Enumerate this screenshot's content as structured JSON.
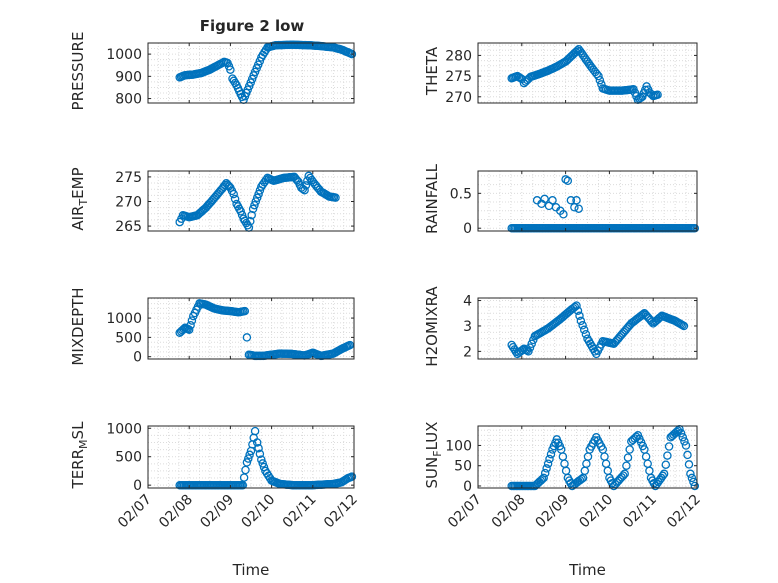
{
  "figure_title": "Figure 2 low",
  "colors": {
    "marker": "#0072BD",
    "axis": "#262626",
    "grid": "#dcdcdc"
  },
  "chart_data": [
    {
      "type": "scatter",
      "ylabel": "PRESSURE",
      "ylim": [
        780,
        1050
      ],
      "yticks": [
        800,
        900,
        1000
      ],
      "ytick_labels": [
        "800",
        "900",
        "1000"
      ],
      "xlim": [
        0,
        5
      ],
      "grid": "on",
      "curve": [
        [
          0.77,
          895
        ],
        [
          0.9,
          905
        ],
        [
          1.1,
          908
        ],
        [
          1.3,
          915
        ],
        [
          1.5,
          930
        ],
        [
          1.7,
          950
        ],
        [
          1.85,
          965
        ],
        [
          1.93,
          960
        ],
        [
          2.0,
          930
        ],
        [
          2.05,
          890
        ],
        [
          2.15,
          860
        ],
        [
          2.25,
          820
        ],
        [
          2.32,
          795
        ],
        [
          2.42,
          840
        ],
        [
          2.6,
          920
        ],
        [
          2.75,
          985
        ],
        [
          2.9,
          1030
        ],
        [
          3.1,
          1040
        ],
        [
          3.5,
          1042
        ],
        [
          3.9,
          1040
        ],
        [
          4.2,
          1036
        ],
        [
          4.5,
          1030
        ],
        [
          4.7,
          1020
        ],
        [
          4.85,
          1008
        ],
        [
          4.95,
          1000
        ]
      ]
    },
    {
      "type": "scatter",
      "ylabel": "THETA",
      "ylim": [
        268.5,
        283
      ],
      "yticks": [
        270,
        275,
        280
      ],
      "ytick_labels": [
        "270",
        "275",
        "280"
      ],
      "xlim": [
        0,
        5
      ],
      "grid": "on",
      "curve": [
        [
          0.77,
          274.5
        ],
        [
          0.9,
          275
        ],
        [
          1.0,
          274.3
        ],
        [
          1.05,
          273.3
        ],
        [
          1.2,
          274.8
        ],
        [
          1.4,
          275.5
        ],
        [
          1.6,
          276.3
        ],
        [
          1.8,
          277.3
        ],
        [
          2.0,
          278.5
        ],
        [
          2.2,
          280.5
        ],
        [
          2.3,
          281.5
        ],
        [
          2.4,
          280
        ],
        [
          2.6,
          277
        ],
        [
          2.75,
          275
        ],
        [
          2.85,
          272
        ],
        [
          3.0,
          271.5
        ],
        [
          3.3,
          271.5
        ],
        [
          3.55,
          271.8
        ],
        [
          3.65,
          269.3
        ],
        [
          3.75,
          270
        ],
        [
          3.85,
          272.5
        ],
        [
          3.92,
          271
        ],
        [
          4.0,
          270.2
        ],
        [
          4.1,
          270.5
        ]
      ]
    },
    {
      "type": "scatter",
      "ylabel": "AIR_TEMP",
      "ylim": [
        264,
        276.2
      ],
      "yticks": [
        265,
        270,
        275
      ],
      "ytick_labels": [
        "265",
        "270",
        "275"
      ],
      "xlim": [
        0,
        5
      ],
      "grid": "on",
      "curve": [
        [
          0.77,
          265.8
        ],
        [
          0.85,
          267.2
        ],
        [
          1.0,
          266.8
        ],
        [
          1.2,
          267.2
        ],
        [
          1.4,
          268.7
        ],
        [
          1.6,
          270.6
        ],
        [
          1.8,
          272.6
        ],
        [
          1.9,
          273.7
        ],
        [
          2.0,
          272.8
        ],
        [
          2.08,
          271.5
        ],
        [
          2.15,
          269.5
        ],
        [
          2.25,
          268
        ],
        [
          2.32,
          266.5
        ],
        [
          2.45,
          264.7
        ],
        [
          2.55,
          268.5
        ],
        [
          2.75,
          273
        ],
        [
          2.9,
          274.8
        ],
        [
          3.05,
          274.2
        ],
        [
          3.3,
          274.8
        ],
        [
          3.55,
          275
        ],
        [
          3.65,
          274
        ],
        [
          3.72,
          272.8
        ],
        [
          3.8,
          272.3
        ],
        [
          3.9,
          275.2
        ],
        [
          4.05,
          273.5
        ],
        [
          4.2,
          272
        ],
        [
          4.4,
          271
        ],
        [
          4.55,
          270.8
        ]
      ]
    },
    {
      "type": "scatter",
      "ylabel": "RAINFALL",
      "ylim": [
        -0.04,
        0.82
      ],
      "yticks": [
        0,
        0.5
      ],
      "ytick_labels": [
        "0",
        "0.5"
      ],
      "xlim": [
        0,
        5
      ],
      "grid": "on",
      "curve": [
        [
          0.77,
          0
        ],
        [
          4.95,
          0
        ]
      ],
      "points": [
        [
          1.35,
          0.4
        ],
        [
          1.45,
          0.35
        ],
        [
          1.52,
          0.42
        ],
        [
          1.62,
          0.32
        ],
        [
          1.7,
          0.4
        ],
        [
          1.78,
          0.3
        ],
        [
          1.88,
          0.25
        ],
        [
          1.95,
          0.2
        ],
        [
          2.0,
          0.7
        ],
        [
          2.05,
          0.68
        ],
        [
          2.12,
          0.4
        ],
        [
          2.2,
          0.3
        ],
        [
          2.25,
          0.4
        ],
        [
          2.3,
          0.28
        ]
      ]
    },
    {
      "type": "scatter",
      "ylabel": "MIXDEPTH",
      "ylim": [
        -60,
        1520
      ],
      "yticks": [
        0,
        500,
        1000
      ],
      "ytick_labels": [
        "0",
        "500",
        "1000"
      ],
      "xlim": [
        0,
        5
      ],
      "grid": "on",
      "curve": [
        [
          0.77,
          620
        ],
        [
          0.9,
          750
        ],
        [
          1.0,
          700
        ],
        [
          1.1,
          1050
        ],
        [
          1.25,
          1380
        ],
        [
          1.4,
          1350
        ],
        [
          1.6,
          1250
        ],
        [
          1.8,
          1200
        ],
        [
          2.0,
          1180
        ],
        [
          2.2,
          1150
        ],
        [
          2.35,
          1180
        ],
        [
          2.4,
          500
        ],
        [
          2.45,
          50
        ],
        [
          2.6,
          20
        ],
        [
          2.8,
          20
        ],
        [
          3.0,
          50
        ],
        [
          3.2,
          80
        ],
        [
          3.5,
          70
        ],
        [
          3.8,
          30
        ],
        [
          4.0,
          100
        ],
        [
          4.2,
          20
        ],
        [
          4.5,
          80
        ],
        [
          4.7,
          200
        ],
        [
          4.9,
          300
        ]
      ]
    },
    {
      "type": "scatter",
      "ylabel": "H2OMIXRA",
      "ylim": [
        1.7,
        4.1
      ],
      "yticks": [
        2,
        3,
        4
      ],
      "ytick_labels": [
        "2",
        "3",
        "4"
      ],
      "xlim": [
        0,
        5
      ],
      "grid": "on",
      "curve": [
        [
          0.77,
          2.25
        ],
        [
          0.9,
          1.9
        ],
        [
          1.05,
          2.1
        ],
        [
          1.15,
          2.0
        ],
        [
          1.3,
          2.6
        ],
        [
          1.6,
          2.9
        ],
        [
          1.9,
          3.3
        ],
        [
          2.1,
          3.6
        ],
        [
          2.25,
          3.8
        ],
        [
          2.35,
          3.2
        ],
        [
          2.5,
          2.5
        ],
        [
          2.7,
          1.9
        ],
        [
          2.85,
          2.4
        ],
        [
          3.1,
          2.3
        ],
        [
          3.3,
          2.7
        ],
        [
          3.5,
          3.1
        ],
        [
          3.8,
          3.5
        ],
        [
          4.0,
          3.1
        ],
        [
          4.2,
          3.4
        ],
        [
          4.5,
          3.2
        ],
        [
          4.7,
          3.0
        ]
      ]
    },
    {
      "type": "scatter",
      "ylabel": "TERR_MSL",
      "ylim": [
        -50,
        1040
      ],
      "yticks": [
        0,
        500,
        1000
      ],
      "ytick_labels": [
        "0",
        "500",
        "1000"
      ],
      "xlim": [
        0,
        5
      ],
      "grid": "on",
      "curve": [
        [
          0.77,
          0
        ],
        [
          1.5,
          0
        ],
        [
          2.0,
          0
        ],
        [
          2.3,
          0
        ],
        [
          2.4,
          400
        ],
        [
          2.5,
          600
        ],
        [
          2.6,
          950
        ],
        [
          2.65,
          750
        ],
        [
          2.75,
          450
        ],
        [
          2.85,
          250
        ],
        [
          3.0,
          80
        ],
        [
          3.2,
          20
        ],
        [
          3.5,
          0
        ],
        [
          4.0,
          0
        ],
        [
          4.5,
          20
        ],
        [
          4.7,
          50
        ],
        [
          4.85,
          120
        ],
        [
          4.95,
          150
        ]
      ]
    },
    {
      "type": "scatter",
      "ylabel": "SUN_FLUX",
      "ylim": [
        -5,
        148
      ],
      "yticks": [
        0,
        50,
        100
      ],
      "ytick_labels": [
        "0",
        "50",
        "100"
      ],
      "xlim": [
        0,
        5
      ],
      "grid": "on",
      "curve": [
        [
          0.77,
          0
        ],
        [
          1.3,
          0
        ],
        [
          1.5,
          20
        ],
        [
          1.7,
          90
        ],
        [
          1.8,
          115
        ],
        [
          1.9,
          90
        ],
        [
          2.05,
          20
        ],
        [
          2.15,
          0
        ],
        [
          2.4,
          20
        ],
        [
          2.55,
          90
        ],
        [
          2.7,
          120
        ],
        [
          2.85,
          90
        ],
        [
          3.0,
          20
        ],
        [
          3.1,
          0
        ],
        [
          3.35,
          30
        ],
        [
          3.5,
          110
        ],
        [
          3.65,
          125
        ],
        [
          3.8,
          90
        ],
        [
          3.95,
          20
        ],
        [
          4.05,
          0
        ],
        [
          4.25,
          30
        ],
        [
          4.4,
          120
        ],
        [
          4.6,
          140
        ],
        [
          4.75,
          100
        ],
        [
          4.85,
          30
        ],
        [
          4.95,
          0
        ]
      ]
    }
  ],
  "x_axis": {
    "ticks": [
      0,
      1,
      2,
      3,
      4,
      5
    ],
    "tick_labels": [
      "02/07",
      "02/08",
      "02/09",
      "02/10",
      "02/11",
      "02/12"
    ],
    "label": "Time"
  }
}
